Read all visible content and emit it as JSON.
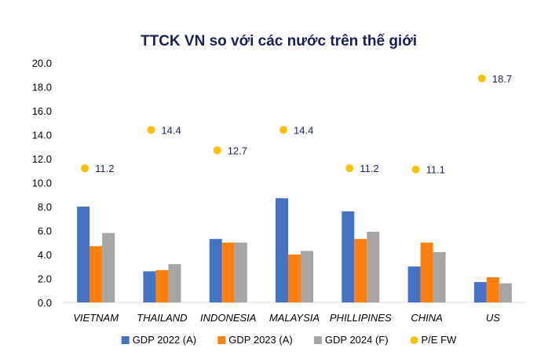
{
  "chart_data": {
    "type": "bar",
    "title": "TTCK VN so với các nước trên thế giới",
    "xlabel": "",
    "ylabel": "",
    "ylim": [
      0,
      20
    ],
    "yticks": [
      "0.0",
      "2.0",
      "4.0",
      "6.0",
      "8.0",
      "10.0",
      "12.0",
      "14.0",
      "16.0",
      "18.0",
      "20.0"
    ],
    "categories": [
      "VIETNAM",
      "THAILAND",
      "INDONESIA",
      "MALAYSIA",
      "PHILLIPINES",
      "CHINA",
      "US"
    ],
    "series": [
      {
        "name": "GDP 2022 (A)",
        "kind": "bar",
        "color": "#4472c4",
        "values": [
          8.0,
          2.6,
          5.3,
          8.7,
          7.6,
          3.0,
          1.7
        ]
      },
      {
        "name": "GDP 2023 (A)",
        "kind": "bar",
        "color": "#ff7f0e",
        "values": [
          4.7,
          2.7,
          5.0,
          4.0,
          5.3,
          5.0,
          2.1
        ]
      },
      {
        "name": "GDP 2024 (F)",
        "kind": "bar",
        "color": "#a5a5a5",
        "values": [
          5.8,
          3.2,
          5.0,
          4.3,
          5.9,
          4.2,
          1.6
        ]
      },
      {
        "name": "P/E FW",
        "kind": "scatter",
        "color": "#ffc000",
        "values": [
          11.2,
          14.4,
          12.7,
          14.4,
          11.2,
          11.1,
          18.7
        ],
        "labels": [
          "11.2",
          "14.4",
          "12.7",
          "14.4",
          "11.2",
          "11.1",
          "18.7"
        ]
      }
    ],
    "grid": false,
    "legend_position": "bottom"
  }
}
